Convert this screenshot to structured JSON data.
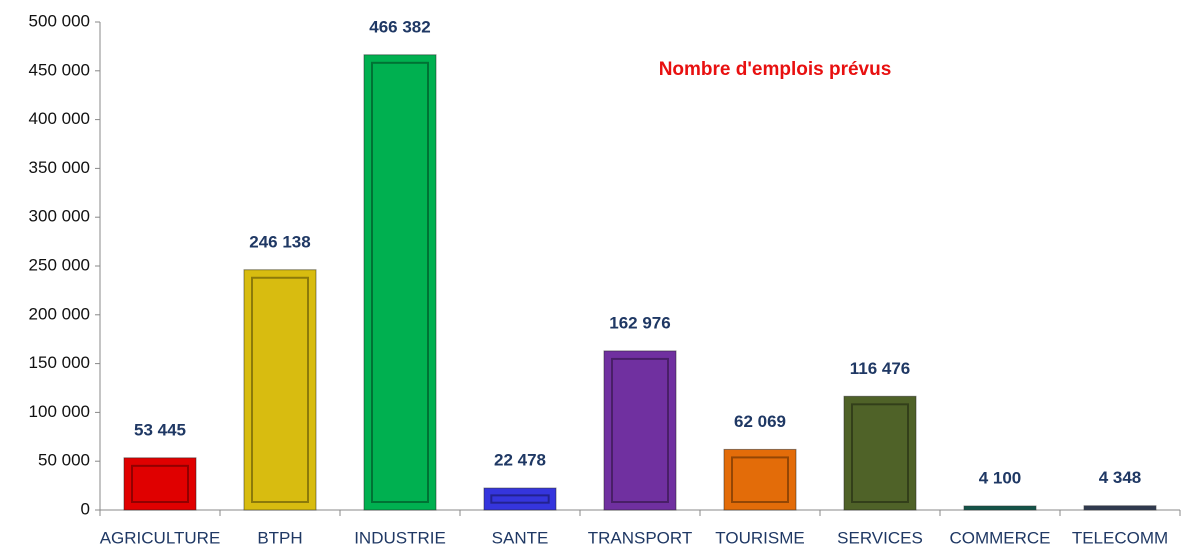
{
  "chart_data": {
    "type": "bar",
    "title": "Nombre d'emplois prévus",
    "categories": [
      "AGRICULTURE",
      "BTPH",
      "INDUSTRIE",
      "SANTE",
      "TRANSPORT",
      "TOURISME",
      "SERVICES",
      "COMMERCE",
      "TELECOMM"
    ],
    "values": [
      53445,
      246138,
      466382,
      22478,
      162976,
      62069,
      116476,
      4100,
      4348
    ],
    "value_labels": [
      "53 445",
      "246 138",
      "466 382",
      "22 478",
      "162 976",
      "62 069",
      "116 476",
      "4 100",
      "4 348"
    ],
    "colors": [
      "#e00000",
      "#d8bc10",
      "#00b050",
      "#3535dd",
      "#7030a0",
      "#e36c09",
      "#4f6228",
      "#1f8070",
      "#4b5a7a"
    ],
    "ylim": [
      0,
      500000
    ],
    "yticks": [
      0,
      {
        "value": 50000,
        "label": "50 000"
      },
      {
        "value": 100000,
        "label": "100 000"
      },
      {
        "value": 150000,
        "label": "150 000"
      },
      {
        "value": 200000,
        "label": "200 000"
      },
      {
        "value": 250000,
        "label": "250 000"
      },
      {
        "value": 300000,
        "label": "300 000"
      },
      {
        "value": 350000,
        "label": "350 000"
      },
      {
        "value": 400000,
        "label": "400 000"
      },
      {
        "value": 450000,
        "label": "450 000"
      },
      {
        "value": 500000,
        "label": "500 000"
      }
    ],
    "grid": false
  }
}
